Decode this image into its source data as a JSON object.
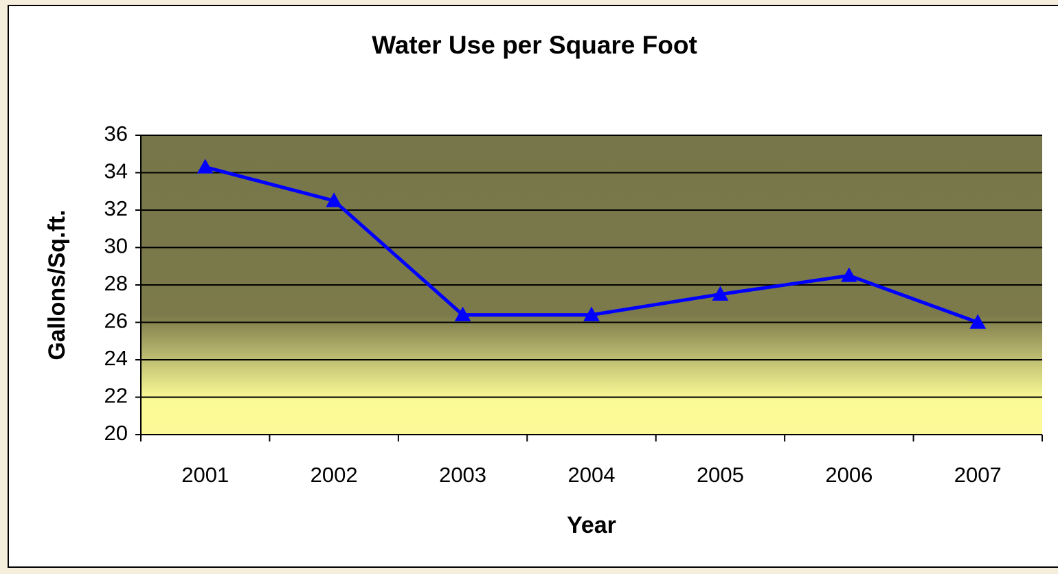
{
  "chart_data": {
    "type": "line",
    "title": "Water Use per Square Foot",
    "x_label": "Year",
    "y_label": "Gallons/Sq.ft.",
    "categories": [
      "2001",
      "2002",
      "2003",
      "2004",
      "2005",
      "2006",
      "2007"
    ],
    "values": [
      34.3,
      32.5,
      26.4,
      26.4,
      27.5,
      28.5,
      26.0
    ],
    "color": "#0000ff",
    "ylim": [
      20,
      36
    ],
    "yticks": [
      20,
      22,
      24,
      26,
      28,
      30,
      32,
      34,
      36
    ],
    "grid": true
  }
}
